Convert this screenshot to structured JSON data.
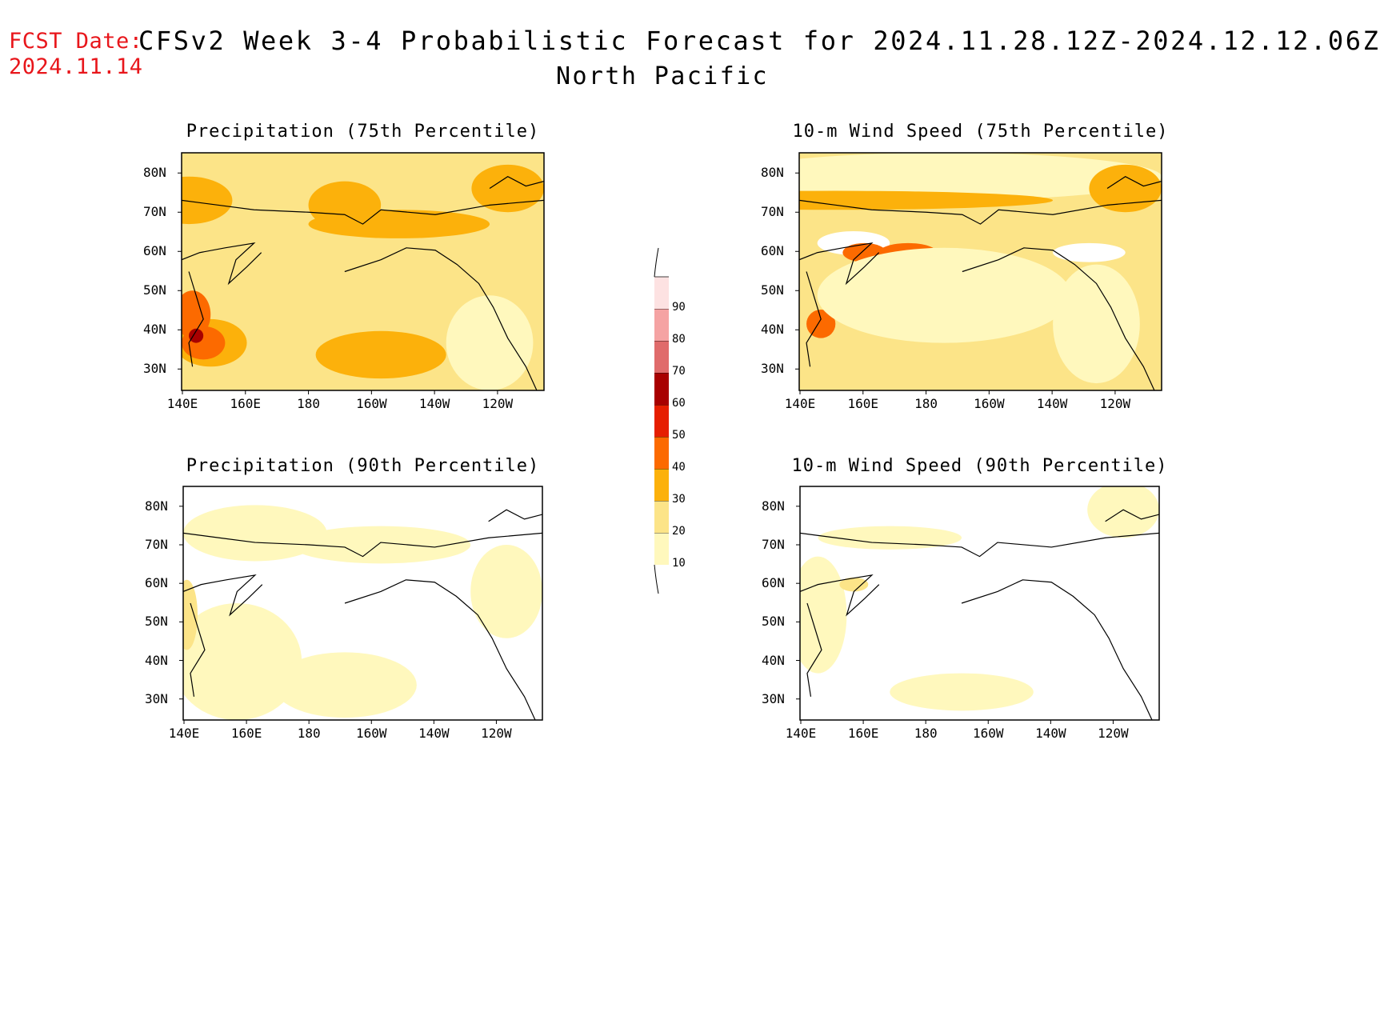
{
  "header": {
    "fcst_label": "FCST Date:",
    "fcst_date": "2024.11.14",
    "title": "CFSv2 Week 3-4 Probabilistic Forecast for 2024.11.28.12Z-2024.12.12.06Z",
    "subtitle": "North Pacific"
  },
  "panels": [
    {
      "title": "Precipitation (75th Percentile)",
      "fill": "#fce488",
      "blobs": [
        [
          "#fcb10b",
          0.02,
          0.2,
          0.12,
          0.1
        ],
        [
          "#fcb10b",
          0.45,
          0.22,
          0.1,
          0.1
        ],
        [
          "#fcb10b",
          0.6,
          0.3,
          0.25,
          0.06
        ],
        [
          "#fcb10b",
          0.08,
          0.8,
          0.1,
          0.1
        ],
        [
          "#fcb10b",
          0.55,
          0.85,
          0.18,
          0.1
        ],
        [
          "#fcb10b",
          0.9,
          0.15,
          0.1,
          0.1
        ],
        [
          "#fc6a00",
          0.03,
          0.68,
          0.05,
          0.1
        ],
        [
          "#fc6a00",
          0.06,
          0.8,
          0.06,
          0.07
        ],
        [
          "#a80000",
          0.04,
          0.77,
          0.02,
          0.03
        ],
        [
          "#fff8bd",
          0.85,
          0.8,
          0.12,
          0.2
        ]
      ]
    },
    {
      "title": "10-m Wind Speed (75th Percentile)",
      "fill": "#fce488",
      "blobs": [
        [
          "#fff8bd",
          0.4,
          0.1,
          0.6,
          0.1
        ],
        [
          "#ffffff",
          0.15,
          0.38,
          0.1,
          0.05
        ],
        [
          "#ffffff",
          0.8,
          0.42,
          0.1,
          0.04
        ],
        [
          "#fcb10b",
          0.1,
          0.2,
          0.6,
          0.04
        ],
        [
          "#fcb10b",
          0.9,
          0.15,
          0.1,
          0.1
        ],
        [
          "#fc6a00",
          0.18,
          0.42,
          0.06,
          0.04
        ],
        [
          "#fc6a00",
          0.3,
          0.42,
          0.08,
          0.04
        ],
        [
          "#fc6a00",
          0.06,
          0.72,
          0.04,
          0.06
        ],
        [
          "#fff8bd",
          0.4,
          0.6,
          0.35,
          0.2
        ],
        [
          "#fff8bd",
          0.82,
          0.72,
          0.12,
          0.25
        ]
      ]
    },
    {
      "title": "Precipitation (90th Percentile)",
      "fill": "#ffffff",
      "blobs": [
        [
          "#fff8bd",
          0.15,
          0.75,
          0.18,
          0.25
        ],
        [
          "#fff8bd",
          0.45,
          0.85,
          0.2,
          0.14
        ],
        [
          "#fff8bd",
          0.2,
          0.2,
          0.2,
          0.12
        ],
        [
          "#fff8bd",
          0.55,
          0.25,
          0.25,
          0.08
        ],
        [
          "#fff8bd",
          0.9,
          0.45,
          0.1,
          0.2
        ],
        [
          "#fce488",
          0.01,
          0.55,
          0.03,
          0.15
        ]
      ]
    },
    {
      "title": "10-m Wind Speed (90th Percentile)",
      "fill": "#ffffff",
      "blobs": [
        [
          "#fff8bd",
          0.05,
          0.55,
          0.08,
          0.25
        ],
        [
          "#fff8bd",
          0.45,
          0.88,
          0.2,
          0.08
        ],
        [
          "#fff8bd",
          0.25,
          0.22,
          0.2,
          0.05
        ],
        [
          "#fff8bd",
          0.9,
          0.1,
          0.1,
          0.12
        ],
        [
          "#fce488",
          0.15,
          0.42,
          0.04,
          0.03
        ]
      ]
    }
  ],
  "axes": {
    "lat_labels": [
      "80N",
      "70N",
      "60N",
      "50N",
      "40N",
      "30N"
    ],
    "lon_labels": [
      "140E",
      "160E",
      "180",
      "160W",
      "140W",
      "120W"
    ]
  },
  "colorbar": {
    "levels": [
      "10",
      "20",
      "30",
      "40",
      "50",
      "60",
      "70",
      "80",
      "90"
    ],
    "colors": [
      "#fff8bd",
      "#fce488",
      "#fcb10b",
      "#fc6a00",
      "#e61e00",
      "#a80000",
      "#e06b6b",
      "#f5a3a3",
      "#fde2e2"
    ]
  }
}
